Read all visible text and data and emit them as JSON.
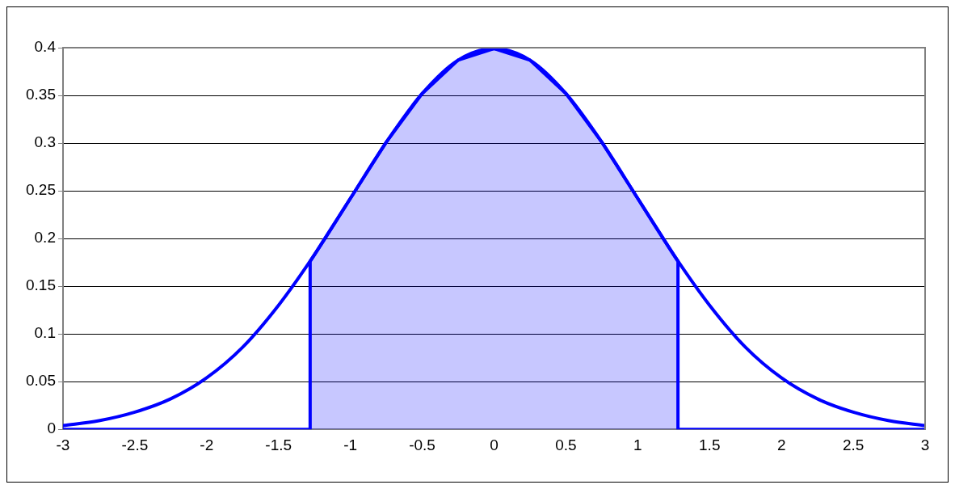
{
  "chart_data": {
    "type": "line",
    "series": [
      {
        "type": "area",
        "color": "#0000ff",
        "x": [
          -3,
          -1.28,
          -1.28,
          -1.25,
          -1,
          -0.75,
          -0.5,
          -0.25,
          0,
          0.25,
          0.5,
          0.75,
          1,
          1.25,
          1.28,
          1.28,
          3
        ],
        "values": [
          0,
          0,
          0.176,
          0.183,
          0.242,
          0.301,
          0.352,
          0.387,
          0.399,
          0.387,
          0.352,
          0.301,
          0.242,
          0.183,
          0.176,
          0,
          0
        ]
      },
      {
        "type": "line",
        "color": "#0000ff",
        "x": [
          -3,
          -2.75,
          -2.5,
          -2.25,
          -2,
          -1.75,
          -1.5,
          -1.25,
          -1,
          -0.75,
          -0.5,
          -0.25,
          0,
          0.25,
          0.5,
          0.75,
          1,
          1.25,
          1.5,
          1.75,
          2,
          2.25,
          2.5,
          2.75,
          3
        ],
        "values": [
          0.004,
          0.009,
          0.018,
          0.032,
          0.054,
          0.086,
          0.13,
          0.183,
          0.242,
          0.301,
          0.352,
          0.387,
          0.399,
          0.387,
          0.352,
          0.301,
          0.242,
          0.183,
          0.13,
          0.086,
          0.054,
          0.032,
          0.018,
          0.009,
          0.004
        ]
      }
    ],
    "xlim": [
      -3,
      3
    ],
    "xticks": [
      -3,
      -2.5,
      -2,
      -1.5,
      -1,
      -0.5,
      0,
      0.5,
      1,
      1.5,
      2,
      2.5,
      3
    ],
    "ylim": [
      0,
      0.4
    ],
    "yticks": [
      0,
      0.05,
      0.1,
      0.15,
      0.2,
      0.25,
      0.3,
      0.35,
      0.4
    ],
    "grid": "y",
    "legend": false,
    "marker": "none",
    "line_style": "solid"
  }
}
